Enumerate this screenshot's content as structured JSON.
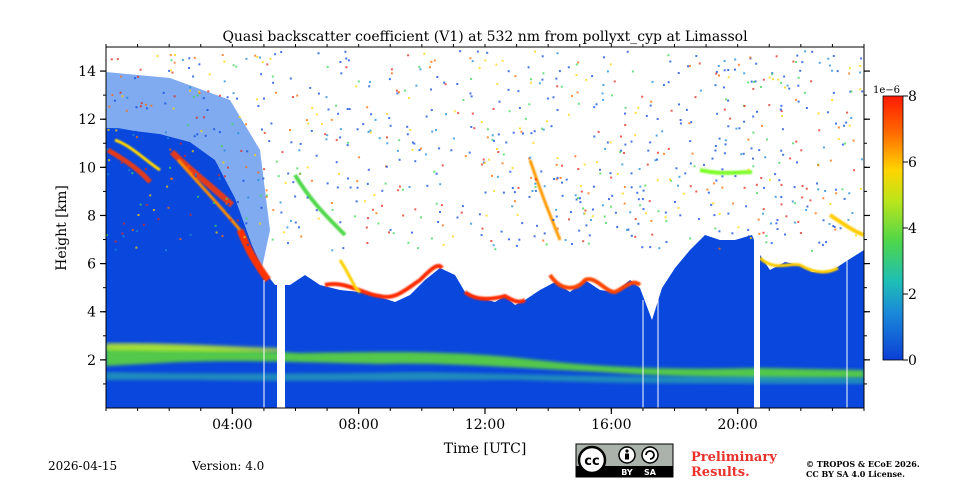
{
  "chart_data": {
    "type": "heatmap",
    "title": "Quasi backscatter coefficient (V1) at 532 nm from pollyxt_cyp at Limassol",
    "xlabel": "Time [UTC]",
    "ylabel": "Height [km]",
    "x_range_hours": [
      0,
      24
    ],
    "x_ticks": [
      {
        "value": 4,
        "label": "04:00"
      },
      {
        "value": 8,
        "label": "08:00"
      },
      {
        "value": 12,
        "label": "12:00"
      },
      {
        "value": 16,
        "label": "16:00"
      },
      {
        "value": 20,
        "label": "20:00"
      }
    ],
    "ylim": [
      0,
      15
    ],
    "y_ticks": [
      {
        "value": 2,
        "label": "2"
      },
      {
        "value": 4,
        "label": "4"
      },
      {
        "value": 6,
        "label": "6"
      },
      {
        "value": 8,
        "label": "8"
      },
      {
        "value": 10,
        "label": "10"
      },
      {
        "value": 12,
        "label": "12"
      },
      {
        "value": 14,
        "label": "14"
      }
    ],
    "colorbar": {
      "range": [
        0,
        8
      ],
      "exponent_label": "1e−6",
      "ticks": [
        {
          "value": 0,
          "label": "0"
        },
        {
          "value": 2,
          "label": "2"
        },
        {
          "value": 4,
          "label": "4"
        },
        {
          "value": 6,
          "label": "6"
        },
        {
          "value": 8,
          "label": "8"
        }
      ],
      "colormap": "jet"
    },
    "features": {
      "aerosol_layer_km": [
        1.6,
        2.6
      ],
      "cloud_base_km": [
        4.0,
        6.0
      ],
      "cirrus_km": [
        8.5,
        11.0
      ],
      "data_gaps_hours": [
        [
          5.5,
          5.9
        ],
        [
          20.5,
          20.75
        ]
      ]
    }
  },
  "footer": {
    "date": "2026-04-15",
    "version": "Version: 4.0",
    "cc_by": "BY",
    "cc_sa": "SA",
    "preliminary_line1": "Preliminary",
    "preliminary_line2": "Results.",
    "copyright_line1": "© TROPOS & ECoE 2026.",
    "copyright_line2": "CC BY SA 4.0 License."
  }
}
